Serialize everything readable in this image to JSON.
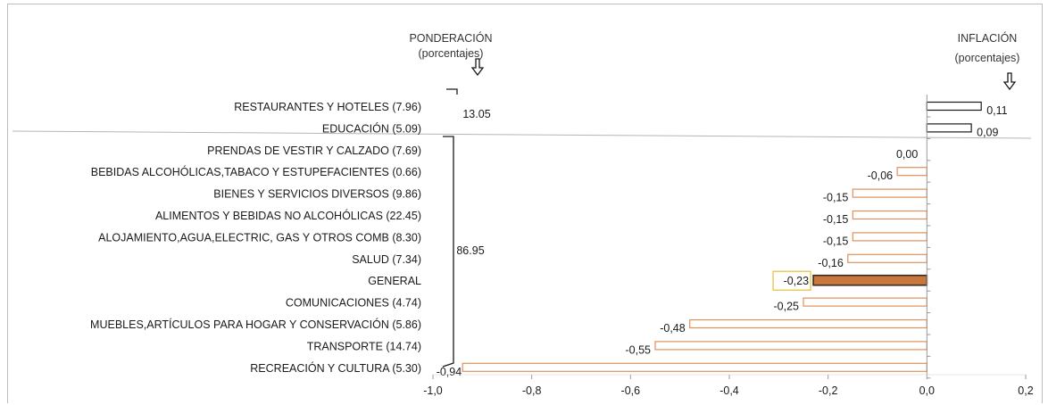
{
  "chart_data": {
    "type": "bar",
    "orientation": "horizontal",
    "categories": [
      "RESTAURANTES Y HOTELES (7.96)",
      "EDUCACIÓN (5.09)",
      "PRENDAS DE VESTIR Y CALZADO (7.69)",
      "BEBIDAS ALCOHÓLICAS,TABACO Y ESTUPEFACIENTES (0.66)",
      "BIENES Y SERVICIOS DIVERSOS (9.86)",
      "ALIMENTOS Y BEBIDAS NO ALCOHÓLICAS (22.45)",
      "ALOJAMIENTO,AGUA,ELECTRIC, GAS Y OTROS COMB (8.30)",
      "SALUD (7.34)",
      "GENERAL",
      "COMUNICACIONES (4.74)",
      "MUEBLES,ARTÍCULOS PARA HOGAR Y CONSERVACIÓN (5.86)",
      "TRANSPORTE (14.74)",
      "RECREACIÓN Y CULTURA (5.30)"
    ],
    "values": [
      0.11,
      0.09,
      0.0,
      -0.06,
      -0.15,
      -0.15,
      -0.15,
      -0.16,
      -0.23,
      -0.25,
      -0.48,
      -0.55,
      -0.94
    ],
    "value_labels": [
      "0,11",
      "0,09",
      "0,00",
      "-0,06",
      "-0,15",
      "-0,15",
      "-0,15",
      "-0,16",
      "-0,23",
      "-0,25",
      "-0,48",
      "-0,55",
      "-0,94"
    ],
    "highlight_index": 8,
    "xlim": [
      -1.0,
      0.2
    ],
    "xticks": [
      -1.0,
      -0.8,
      -0.6,
      -0.4,
      -0.2,
      0.0,
      0.2
    ],
    "xtick_labels": [
      "-1,0",
      "-0,8",
      "-0,6",
      "-0,4",
      "-0,2",
      "0,0",
      "0,2"
    ],
    "group_totals": [
      {
        "label": "13.05",
        "from_index": 0,
        "to_index": 1
      },
      {
        "label": "86.95",
        "from_index": 2,
        "to_index": 12
      }
    ],
    "left_header": {
      "line1": "PONDERACIÓN",
      "line2": "(porcentajes)"
    },
    "right_header": {
      "line1": "INFLACIÓN",
      "line2": "(porcentajes)"
    },
    "colors": {
      "positive_outline": "#1a1a1a",
      "negative_outline": "#e0905a",
      "highlight_fill": "#c8773d",
      "highlight_outline": "#3a2a1a",
      "highlight_label_box": "#e8c440",
      "axis": "#9a9a9a"
    }
  }
}
